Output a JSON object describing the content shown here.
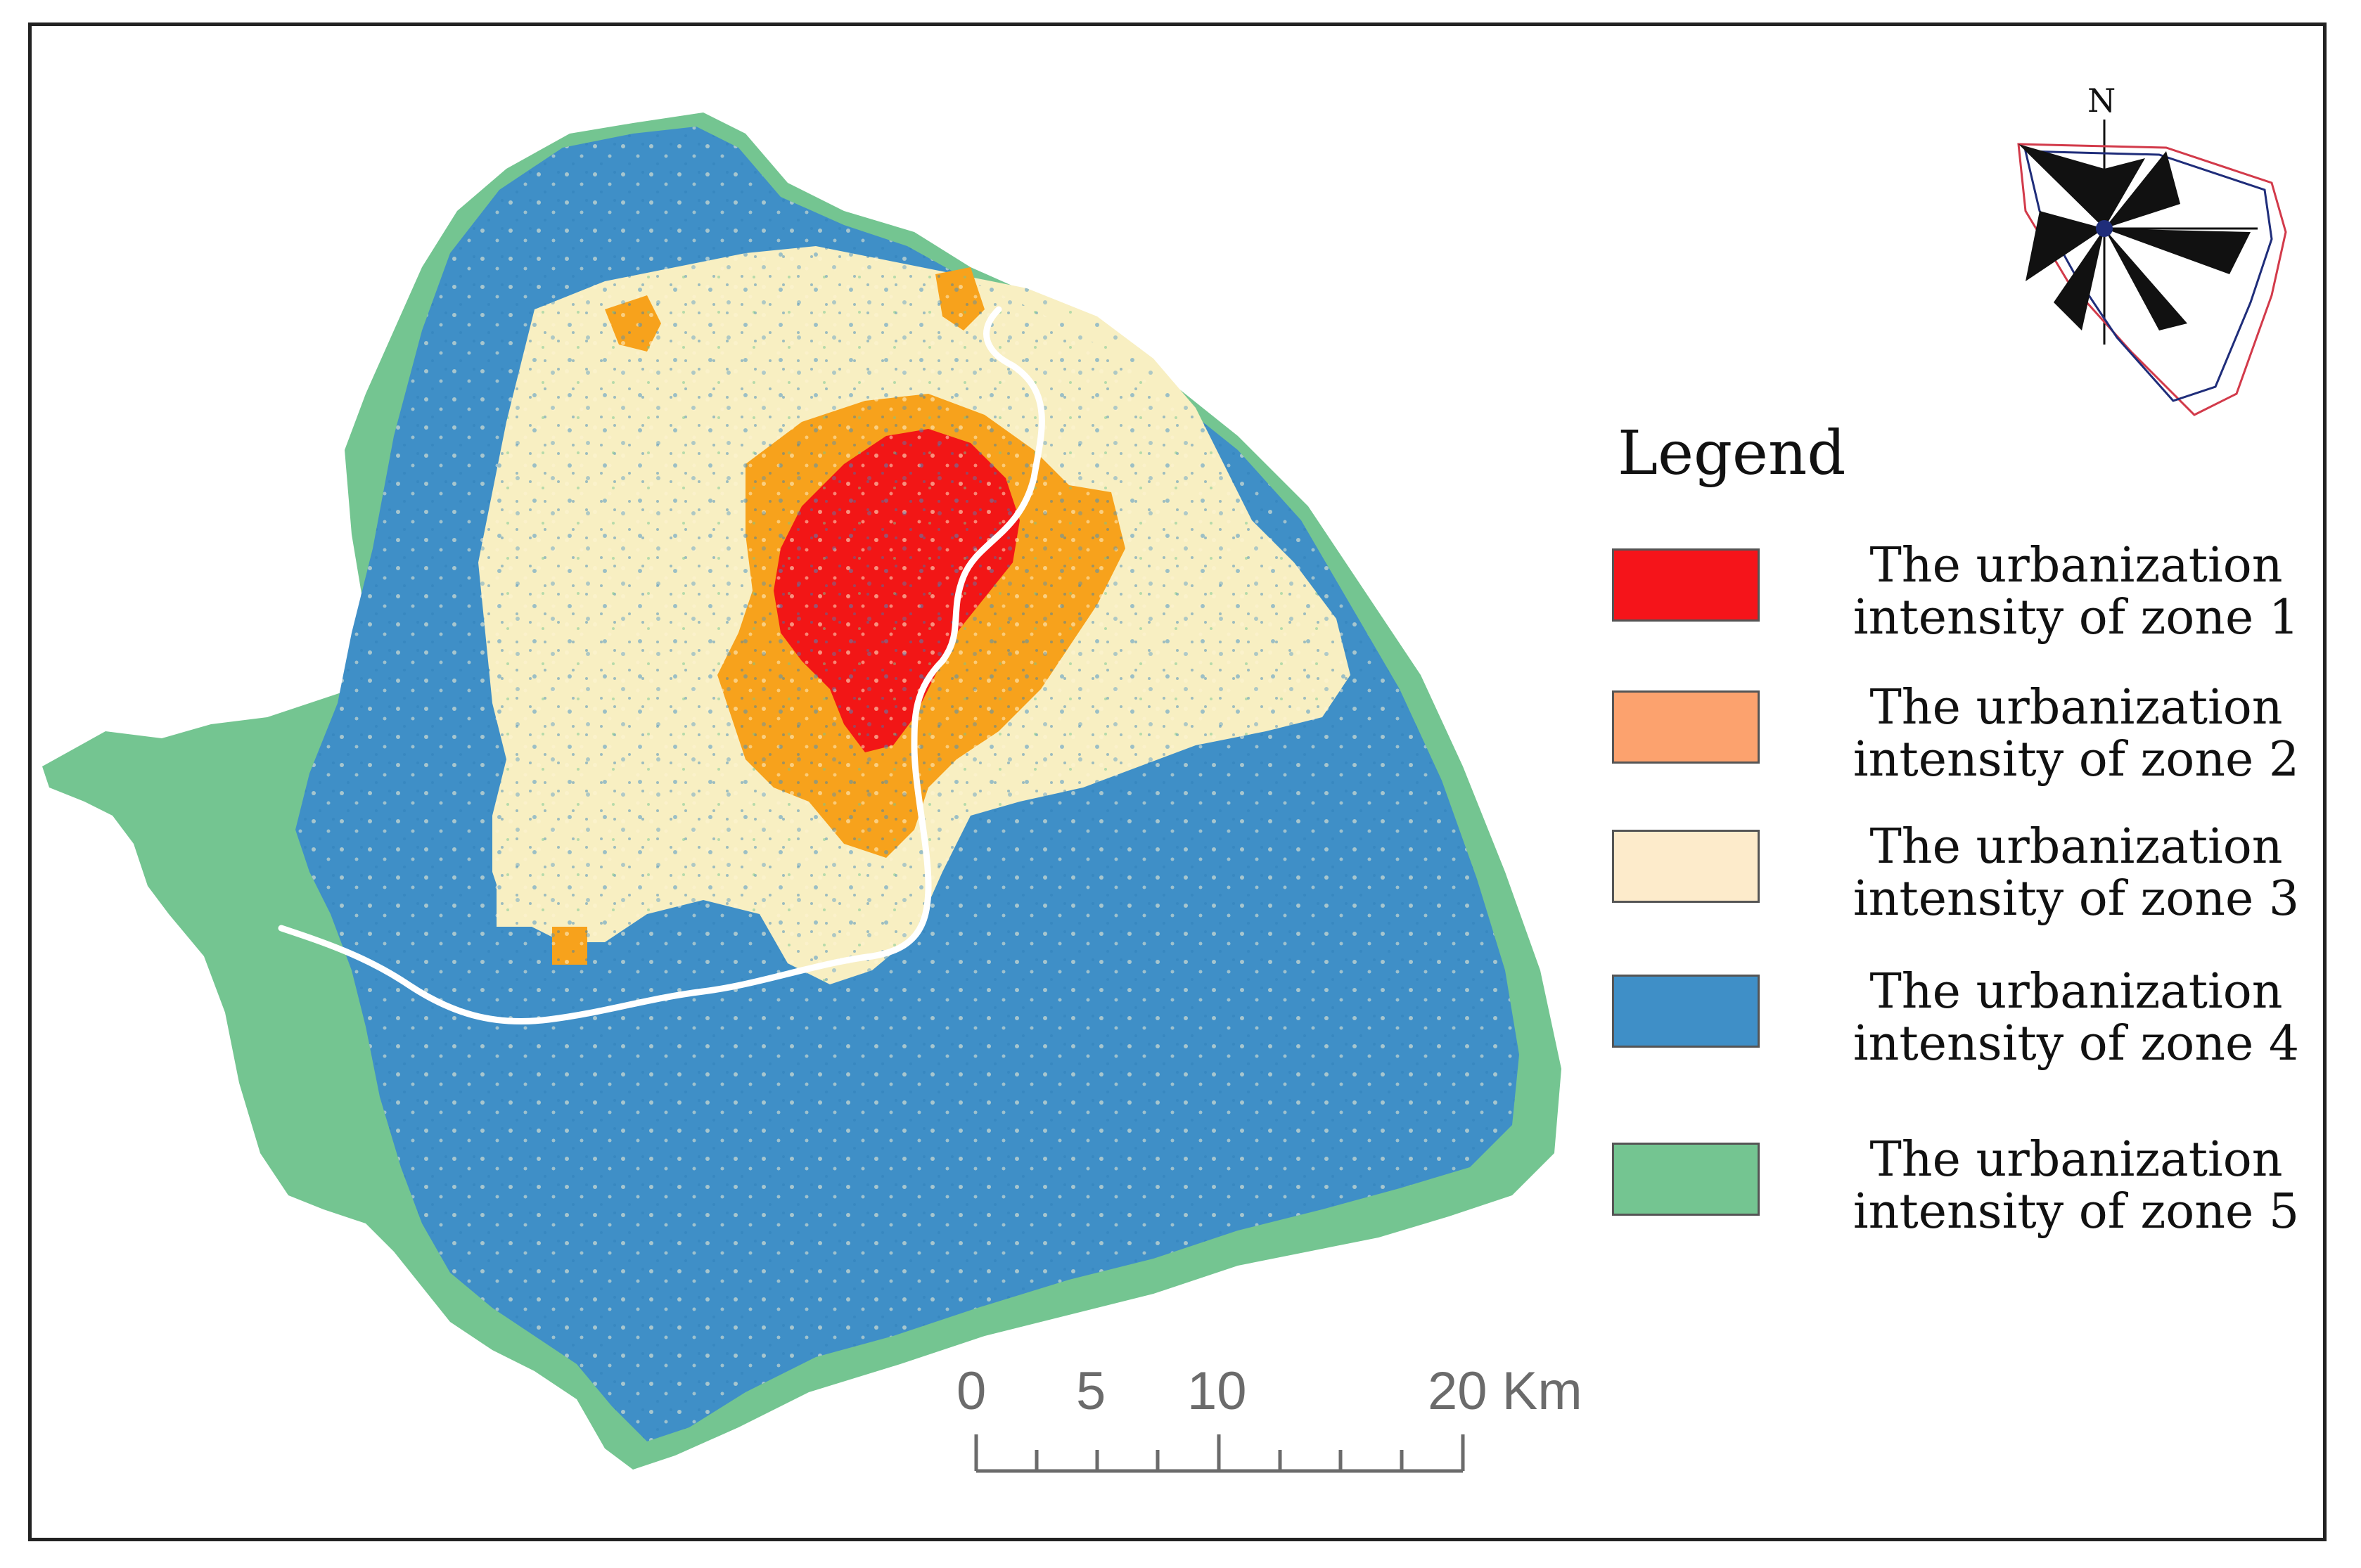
{
  "legend": {
    "title": "Legend",
    "items": [
      {
        "label": "The urbanization\nintensity of zone 1",
        "color": "#f5141a"
      },
      {
        "label": "The urbanization\nintensity of zone 2",
        "color": "#fca26e"
      },
      {
        "label": "The urbanization\nintensity of zone 3",
        "color": "#fdebcb"
      },
      {
        "label": "The urbanization\nintensity of zone 4",
        "color": "#3f8fc7"
      },
      {
        "label": "The urbanization\nintensity of zone 5",
        "color": "#74c591"
      }
    ]
  },
  "scale_bar": {
    "ticks": [
      "0",
      "5",
      "10",
      "20 Km"
    ],
    "color": "#6b6b6b"
  },
  "north_arrow": {
    "letter": "N",
    "icon": "compass-rose-icon"
  },
  "map_colors": {
    "zone1": "#f21616",
    "zone2": "#f7a21c",
    "zone3": "#f8efc2",
    "zone4": "#3f8fc7",
    "zone5": "#74c591",
    "river": "#ffffff"
  }
}
